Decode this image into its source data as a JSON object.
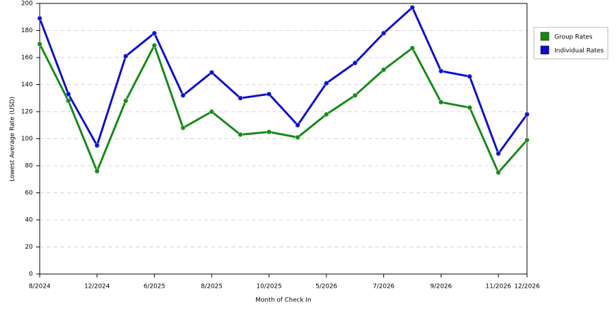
{
  "chart_data": {
    "type": "line",
    "x_label": "Month of Check In",
    "y_label": "Lowest Average Rate (USD)",
    "categories": [
      "8/2024",
      null,
      "12/2024",
      null,
      "6/2025",
      null,
      "8/2025",
      null,
      "10/2025",
      null,
      "5/2026",
      null,
      "7/2026",
      null,
      "9/2026",
      null,
      "11/2026",
      "12/2026"
    ],
    "series": [
      {
        "name": "Group Rates",
        "color": "#138a13",
        "values": [
          170,
          128,
          76,
          128,
          169,
          108,
          120,
          103,
          105,
          101,
          118,
          132,
          151,
          167,
          127,
          123,
          75,
          99
        ]
      },
      {
        "name": "Individual Rates",
        "color": "#0c0cd4",
        "values": [
          189,
          133,
          95,
          161,
          178,
          132,
          149,
          130,
          133,
          110,
          141,
          156,
          178,
          197,
          150,
          146,
          89,
          118
        ]
      }
    ],
    "ylim": [
      0,
      200
    ],
    "yticks": [
      0,
      20,
      40,
      60,
      80,
      100,
      120,
      140,
      160,
      180,
      200
    ],
    "grid": true,
    "legend": "right"
  }
}
